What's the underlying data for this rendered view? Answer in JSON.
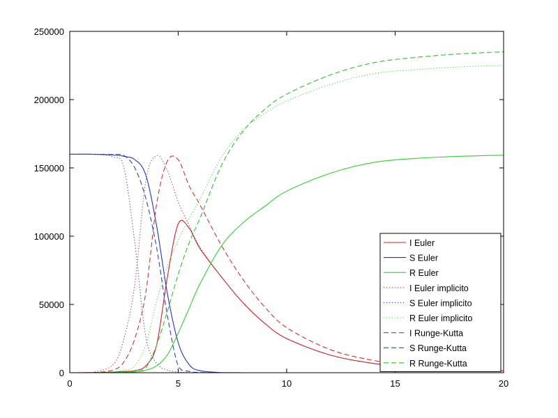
{
  "chart_data": {
    "type": "line",
    "title": "",
    "xlabel": "",
    "ylabel": "",
    "xlim": [
      0,
      20
    ],
    "ylim": [
      0,
      250000
    ],
    "xticks": [
      "0",
      "5",
      "10",
      "15",
      "20"
    ],
    "yticks": [
      "0",
      "50000",
      "100000",
      "150000",
      "200000",
      "250000"
    ],
    "grid": false,
    "legend_position": "bottom-right",
    "x": [
      0,
      1,
      2,
      2.5,
      3,
      3.5,
      4,
      4.5,
      5,
      5.5,
      6,
      7,
      8,
      9,
      10,
      12,
      14,
      16,
      18,
      20
    ],
    "series": [
      {
        "name": "I Euler",
        "color": "#cc2222",
        "style": "solid",
        "values": [
          0,
          50,
          500,
          900,
          1500,
          5000,
          20000,
          70000,
          109000,
          106000,
          91000,
          70000,
          51000,
          36000,
          25000,
          13000,
          6800,
          3800,
          2200,
          1300
        ]
      },
      {
        "name": "S Euler",
        "color": "#2233bb",
        "style": "solid",
        "values": [
          160000,
          160000,
          159500,
          158500,
          156000,
          145000,
          108000,
          58000,
          22000,
          6000,
          1500,
          100,
          0,
          0,
          0,
          0,
          0,
          0,
          0,
          0
        ]
      },
      {
        "name": "R Euler",
        "color": "#33cc33",
        "style": "solid",
        "values": [
          0,
          0,
          50,
          200,
          600,
          1800,
          5000,
          13000,
          29000,
          47000,
          65000,
          93000,
          110000,
          122000,
          133000,
          146000,
          154000,
          157000,
          158500,
          159300
        ]
      },
      {
        "name": "I Euler implicito",
        "color": "#aa3355",
        "style": "dotted",
        "values": [
          0,
          200,
          6000,
          25000,
          65000,
          140000,
          159000,
          148000,
          125000,
          108000,
          92000,
          70000,
          51000,
          36000,
          25000,
          13000,
          6800,
          3800,
          2200,
          1300
        ]
      },
      {
        "name": "S Euler implicito",
        "color": "#444499",
        "style": "dotted",
        "values": [
          160000,
          160000,
          158000,
          150000,
          95000,
          27000,
          7000,
          2000,
          500,
          100,
          0,
          0,
          0,
          0,
          0,
          0,
          0,
          0,
          0,
          0
        ]
      },
      {
        "name": "R Euler implicito",
        "color": "#55cc55",
        "style": "dotted",
        "values": [
          0,
          50,
          600,
          2000,
          5000,
          20000,
          52000,
          78000,
          97000,
          113000,
          127000,
          158000,
          178000,
          190000,
          199000,
          211000,
          219000,
          222000,
          224000,
          225000
        ]
      },
      {
        "name": "I Runge-Kutta",
        "color": "#cc3333",
        "style": "dashed",
        "values": [
          0,
          20,
          2000,
          8000,
          25000,
          58000,
          123000,
          155000,
          156000,
          137000,
          123000,
          93000,
          68000,
          48000,
          33000,
          17000,
          9000,
          5000,
          2800,
          1600
        ]
      },
      {
        "name": "S Runge-Kutta",
        "color": "#3344aa",
        "style": "dashed",
        "values": [
          160000,
          160000,
          159800,
          159000,
          150000,
          128000,
          92000,
          42000,
          5000,
          1000,
          200,
          0,
          0,
          0,
          0,
          0,
          0,
          0,
          0,
          0
        ]
      },
      {
        "name": "R Runge-Kutta",
        "color": "#33bb33",
        "style": "dashed",
        "values": [
          0,
          0,
          100,
          400,
          1200,
          3500,
          20000,
          45000,
          72000,
          95000,
          113000,
          152000,
          177000,
          193000,
          204000,
          218000,
          227000,
          231000,
          233500,
          235000
        ]
      }
    ]
  }
}
